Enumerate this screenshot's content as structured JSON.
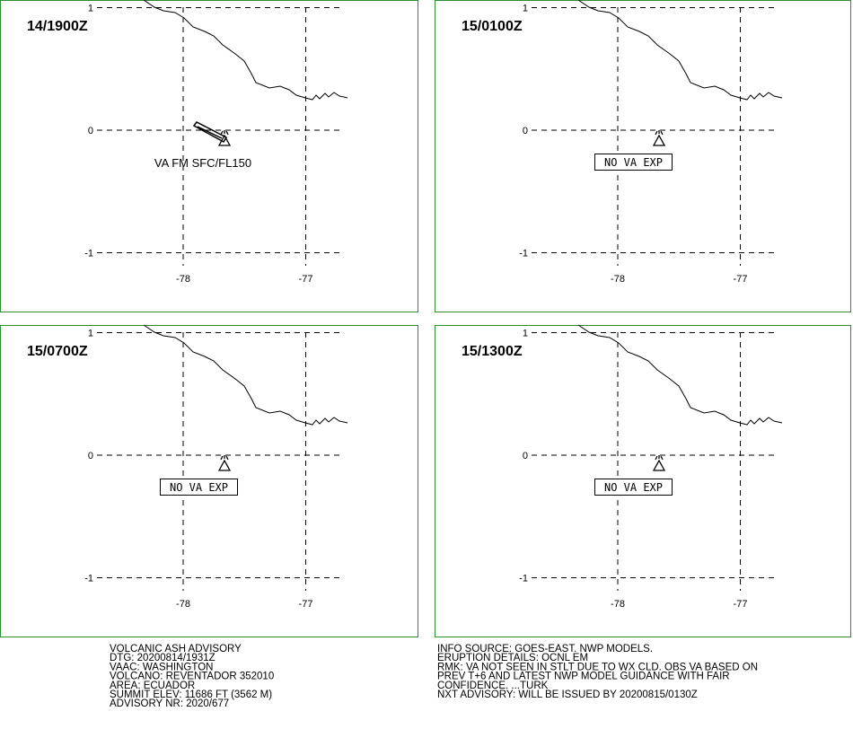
{
  "panels": [
    {
      "time": "14/1900Z",
      "lat_ticks": [
        1,
        0,
        -1
      ],
      "lon_ticks": [
        -78,
        -77
      ],
      "annotation": "VA FM SFC/FL150"
    },
    {
      "time": "15/0100Z",
      "lat_ticks": [
        1,
        0,
        -1
      ],
      "lon_ticks": [
        -78,
        -77
      ],
      "annotation": "NO VA EXP"
    },
    {
      "time": "15/0700Z",
      "lat_ticks": [
        1,
        0,
        -1
      ],
      "lon_ticks": [
        -78,
        -77
      ],
      "annotation": "NO VA EXP"
    },
    {
      "time": "15/1300Z",
      "lat_ticks": [
        1,
        0,
        -1
      ],
      "lon_ticks": [
        -78,
        -77
      ],
      "annotation": "NO VA EXP"
    }
  ],
  "advisory_left": [
    "VOLCANIC ASH ADVISORY",
    "DTG: 20200814/1931Z",
    "VAAC: WASHINGTON",
    "VOLCANO: REVENTADOR 352010",
    "AREA: ECUADOR",
    "SUMMIT ELEV: 11686 FT (3562 M)",
    "ADVISORY NR: 2020/677"
  ],
  "advisory_right": [
    "INFO SOURCE: GOES-EAST. NWP MODELS.",
    "ERUPTION DETAILS: OCNL EM",
    "RMK: VA NOT SEEN IN STLT DUE TO WX CLD. OBS VA BASED ON",
    "PREV T+6 AND LATEST NWP MODEL GUIDANCE WITH FAIR",
    "CONFIDENCE. ...TURK",
    "NXT ADVISORY: WILL BE ISSUED BY 20200815/0130Z"
  ]
}
